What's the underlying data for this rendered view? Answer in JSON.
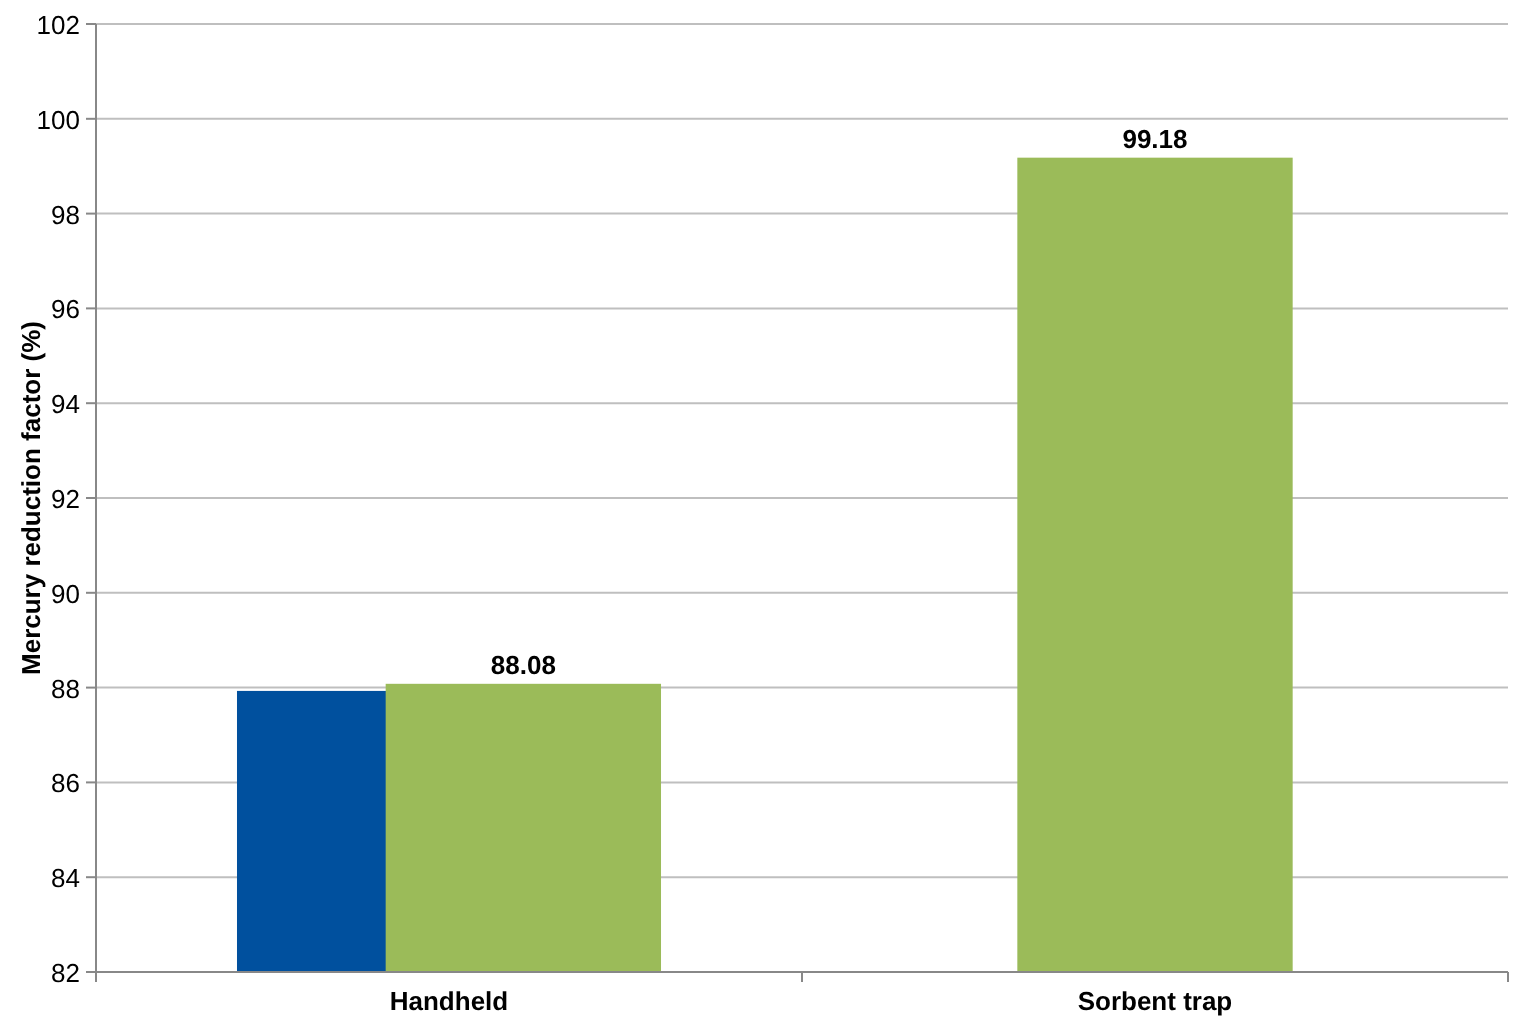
{
  "chart_data": {
    "type": "bar",
    "ylabel": "Mercury reduction factor (%)",
    "categories": [
      "Handheld",
      "Sorbent trap"
    ],
    "series": [
      {
        "color": "#00509e",
        "values": [
          87.93,
          null
        ],
        "value_labels": [
          null,
          null
        ]
      },
      {
        "color": "#9bbb59",
        "values": [
          88.08,
          99.18
        ],
        "value_labels": [
          "88.08",
          "99.18"
        ]
      }
    ],
    "ylim": [
      82,
      102
    ],
    "yticks": [
      82,
      84,
      86,
      88,
      90,
      92,
      94,
      96,
      98,
      100,
      102
    ],
    "grid": "y"
  }
}
